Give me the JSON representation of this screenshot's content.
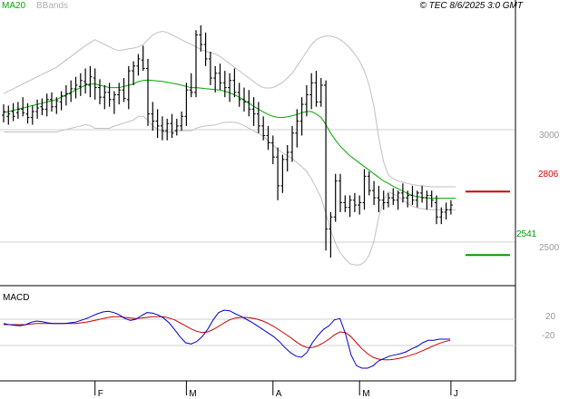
{
  "header": {
    "ma_label": "MA20",
    "bands_label": "BBands",
    "copyright": "© TEC 8/6/2025 3:0 GMT"
  },
  "levels": {
    "resistance_label": "2806",
    "resistance_value": 2806,
    "support_label": "2541",
    "support_value": 2541,
    "resistance_color": "#cc0000",
    "support_color": "#009900"
  },
  "colors": {
    "ma": "#00aa00",
    "bands": "#c0c0c0",
    "bars": "#000000",
    "macd": "#0000cc",
    "signal": "#cc0000"
  },
  "chart_data": [
    {
      "type": "ohlc",
      "name": "price",
      "y_ticks": [
        "3000",
        "2500"
      ],
      "y_tick_values": [
        3000,
        2500
      ],
      "ylim": [
        2470,
        3530
      ],
      "x_ticks": [
        "F",
        "M",
        "A",
        "M",
        "J"
      ],
      "x_tick_index": [
        19,
        38,
        56,
        74,
        93
      ],
      "legend": [
        "MA20",
        "BBands"
      ],
      "lines": [
        "MA20",
        "BBands"
      ],
      "ohlc": [
        [
          3125,
          3170,
          3095,
          3140
        ],
        [
          3120,
          3165,
          3085,
          3130
        ],
        [
          3140,
          3175,
          3100,
          3120
        ],
        [
          3135,
          3180,
          3110,
          3150
        ],
        [
          3150,
          3200,
          3120,
          3135
        ],
        [
          3130,
          3175,
          3090,
          3115
        ],
        [
          3115,
          3165,
          3085,
          3140
        ],
        [
          3140,
          3190,
          3110,
          3155
        ],
        [
          3160,
          3195,
          3125,
          3150
        ],
        [
          3150,
          3215,
          3120,
          3190
        ],
        [
          3190,
          3220,
          3140,
          3160
        ],
        [
          3160,
          3200,
          3130,
          3185
        ],
        [
          3180,
          3225,
          3145,
          3205
        ],
        [
          3205,
          3250,
          3165,
          3215
        ],
        [
          3215,
          3270,
          3180,
          3235
        ],
        [
          3235,
          3285,
          3195,
          3250
        ],
        [
          3245,
          3300,
          3205,
          3270
        ],
        [
          3265,
          3320,
          3215,
          3255
        ],
        [
          3250,
          3330,
          3200,
          3285
        ],
        [
          3280,
          3320,
          3190,
          3240
        ],
        [
          3240,
          3275,
          3170,
          3200
        ],
        [
          3200,
          3250,
          3150,
          3220
        ],
        [
          3220,
          3260,
          3160,
          3190
        ],
        [
          3190,
          3225,
          3130,
          3210
        ],
        [
          3210,
          3260,
          3170,
          3230
        ],
        [
          3230,
          3280,
          3180,
          3195
        ],
        [
          3190,
          3330,
          3150,
          3310
        ],
        [
          3310,
          3350,
          3250,
          3330
        ],
        [
          3330,
          3380,
          3290,
          3360
        ],
        [
          3355,
          3415,
          3310,
          3320
        ],
        [
          3320,
          3360,
          3080,
          3130
        ],
        [
          3130,
          3180,
          3060,
          3100
        ],
        [
          3100,
          3150,
          3030,
          3080
        ],
        [
          3080,
          3120,
          3020,
          3060
        ],
        [
          3060,
          3110,
          3020,
          3090
        ],
        [
          3090,
          3130,
          3030,
          3050
        ],
        [
          3060,
          3110,
          3040,
          3080
        ],
        [
          3080,
          3140,
          3060,
          3120
        ],
        [
          3120,
          3260,
          3080,
          3230
        ],
        [
          3230,
          3300,
          3200,
          3220
        ],
        [
          3220,
          3480,
          3200,
          3460
        ],
        [
          3460,
          3500,
          3390,
          3420
        ],
        [
          3420,
          3470,
          3330,
          3360
        ],
        [
          3360,
          3390,
          3250,
          3280
        ],
        [
          3280,
          3330,
          3220,
          3300
        ],
        [
          3300,
          3340,
          3230,
          3260
        ],
        [
          3260,
          3310,
          3200,
          3240
        ],
        [
          3240,
          3300,
          3180,
          3270
        ],
        [
          3270,
          3320,
          3200,
          3220
        ],
        [
          3220,
          3260,
          3160,
          3190
        ],
        [
          3190,
          3240,
          3140,
          3180
        ],
        [
          3180,
          3230,
          3120,
          3150
        ],
        [
          3150,
          3200,
          3080,
          3130
        ],
        [
          3130,
          3180,
          3050,
          3080
        ],
        [
          3080,
          3120,
          3020,
          3040
        ],
        [
          3040,
          3080,
          2980,
          3010
        ],
        [
          3010,
          3040,
          2920,
          2950
        ],
        [
          2950,
          2990,
          2770,
          2830
        ],
        [
          2830,
          2960,
          2800,
          2940
        ],
        [
          2940,
          3000,
          2890,
          2970
        ],
        [
          2970,
          3080,
          2930,
          3050
        ],
        [
          3050,
          3150,
          2990,
          3100
        ],
        [
          3100,
          3200,
          3040,
          3170
        ],
        [
          3170,
          3250,
          3120,
          3210
        ],
        [
          3210,
          3300,
          3150,
          3260
        ],
        [
          3260,
          3310,
          3160,
          3180
        ],
        [
          3180,
          3280,
          3160,
          3250
        ],
        [
          3250,
          3270,
          2560,
          2650
        ],
        [
          2650,
          2720,
          2530,
          2700
        ],
        [
          2700,
          2880,
          2680,
          2850
        ],
        [
          2850,
          2880,
          2720,
          2760
        ],
        [
          2760,
          2790,
          2720,
          2740
        ],
        [
          2740,
          2790,
          2700,
          2770
        ],
        [
          2770,
          2800,
          2720,
          2750
        ],
        [
          2750,
          2790,
          2710,
          2760
        ],
        [
          2760,
          2900,
          2730,
          2870
        ],
        [
          2870,
          2890,
          2790,
          2810
        ],
        [
          2810,
          2850,
          2750,
          2780
        ],
        [
          2780,
          2830,
          2720,
          2770
        ],
        [
          2770,
          2810,
          2730,
          2760
        ],
        [
          2760,
          2800,
          2740,
          2780
        ],
        [
          2780,
          2820,
          2750,
          2770
        ],
        [
          2770,
          2810,
          2730,
          2800
        ],
        [
          2800,
          2840,
          2760,
          2780
        ],
        [
          2780,
          2810,
          2740,
          2790
        ],
        [
          2790,
          2830,
          2750,
          2770
        ],
        [
          2770,
          2810,
          2740,
          2800
        ],
        [
          2800,
          2830,
          2760,
          2780
        ],
        [
          2780,
          2810,
          2730,
          2790
        ],
        [
          2790,
          2810,
          2740,
          2770
        ],
        [
          2760,
          2790,
          2670,
          2700
        ],
        [
          2700,
          2740,
          2670,
          2720
        ],
        [
          2720,
          2760,
          2690,
          2730
        ],
        [
          2730,
          2770,
          2710,
          2750
        ]
      ],
      "ma20": [
        3135,
        3140,
        3145,
        3150,
        3155,
        3160,
        3165,
        3170,
        3175,
        3180,
        3185,
        3190,
        3200,
        3210,
        3220,
        3230,
        3240,
        3250,
        3255,
        3255,
        3250,
        3245,
        3240,
        3240,
        3240,
        3245,
        3250,
        3255,
        3265,
        3270,
        3272,
        3270,
        3268,
        3266,
        3262,
        3258,
        3255,
        3250,
        3245,
        3240,
        3240,
        3238,
        3236,
        3234,
        3232,
        3230,
        3225,
        3218,
        3210,
        3200,
        3188,
        3175,
        3162,
        3150,
        3138,
        3128,
        3120,
        3116,
        3115,
        3118,
        3122,
        3128,
        3135,
        3140,
        3140,
        3130,
        3115,
        3085,
        3050,
        3020,
        2995,
        2975,
        2955,
        2940,
        2925,
        2910,
        2895,
        2880,
        2865,
        2850,
        2840,
        2828,
        2818,
        2808,
        2798,
        2790,
        2785,
        2782,
        2780,
        2778,
        2778,
        2778,
        2778,
        2778,
        2778
      ],
      "bb_upper": [
        3215,
        3225,
        3235,
        3245,
        3255,
        3265,
        3275,
        3285,
        3295,
        3305,
        3315,
        3325,
        3340,
        3355,
        3370,
        3385,
        3400,
        3415,
        3428,
        3440,
        3430,
        3420,
        3410,
        3400,
        3395,
        3398,
        3402,
        3405,
        3410,
        3420,
        3440,
        3460,
        3470,
        3475,
        3470,
        3460,
        3450,
        3440,
        3430,
        3420,
        3410,
        3400,
        3392,
        3386,
        3380,
        3370,
        3355,
        3340,
        3325,
        3310,
        3295,
        3280,
        3265,
        3250,
        3240,
        3238,
        3240,
        3250,
        3262,
        3280,
        3300,
        3330,
        3360,
        3390,
        3420,
        3440,
        3450,
        3455,
        3455,
        3450,
        3440,
        3425,
        3405,
        3380,
        3350,
        3310,
        3250,
        3160,
        3030,
        2930,
        2875,
        2860,
        2850,
        2845,
        2840,
        2835,
        2832,
        2830,
        2828,
        2826,
        2826,
        2826,
        2826,
        2826,
        2826
      ],
      "bb_lower": [
        3055,
        3055,
        3055,
        3055,
        3055,
        3055,
        3055,
        3055,
        3055,
        3055,
        3055,
        3055,
        3060,
        3065,
        3070,
        3075,
        3080,
        3085,
        3082,
        3070,
        3070,
        3070,
        3070,
        3080,
        3085,
        3092,
        3098,
        3105,
        3120,
        3120,
        3104,
        3080,
        3066,
        3057,
        3054,
        3056,
        3060,
        3060,
        3060,
        3060,
        3070,
        3076,
        3080,
        3082,
        3084,
        3090,
        3095,
        3096,
        3095,
        3090,
        3081,
        3070,
        3059,
        3050,
        3036,
        3018,
        3000,
        2982,
        2968,
        2956,
        2944,
        2926,
        2910,
        2890,
        2860,
        2820,
        2780,
        2715,
        2645,
        2590,
        2550,
        2525,
        2505,
        2500,
        2500,
        2510,
        2540,
        2600,
        2700,
        2770,
        2805,
        2796,
        2786,
        2771,
        2756,
        2745,
        2738,
        2734,
        2732,
        2730,
        2730,
        2730,
        2730,
        2730,
        2730
      ]
    },
    {
      "type": "line",
      "name": "MACD",
      "title": "MACD",
      "y_ticks": [
        "20",
        "-20"
      ],
      "y_tick_values": [
        20,
        -20
      ],
      "ylim": [
        -80,
        70
      ],
      "macd": [
        12,
        10,
        9,
        8,
        10,
        14,
        16,
        15,
        13,
        12,
        12,
        12,
        13,
        14,
        17,
        20,
        24,
        28,
        31,
        32,
        30,
        26,
        20,
        17,
        19,
        25,
        30,
        29,
        26,
        21,
        13,
        2,
        -10,
        -20,
        -22,
        -18,
        -10,
        2,
        18,
        30,
        34,
        33,
        28,
        24,
        19,
        14,
        8,
        2,
        -4,
        -10,
        -18,
        -28,
        -36,
        -42,
        -44,
        -36,
        -20,
        -8,
        2,
        8,
        18,
        20,
        -5,
        -40,
        -58,
        -62,
        -62,
        -58,
        -50,
        -46,
        -42,
        -40,
        -38,
        -35,
        -30,
        -26,
        -20,
        -16,
        -16,
        -14,
        -14,
        -14
      ],
      "signal": [
        10,
        10,
        10,
        10,
        10,
        11,
        12,
        12,
        12,
        12,
        12,
        12,
        12,
        12,
        13,
        14,
        16,
        18,
        20,
        22,
        23,
        23,
        22,
        21,
        20,
        21,
        22,
        23,
        23,
        23,
        21,
        18,
        13,
        8,
        3,
        -1,
        -3,
        -2,
        2,
        7,
        13,
        18,
        21,
        22,
        22,
        21,
        19,
        16,
        12,
        7,
        1,
        -5,
        -11,
        -18,
        -24,
        -28,
        -28,
        -25,
        -20,
        -14,
        -7,
        -2,
        -3,
        -10,
        -20,
        -30,
        -38,
        -44,
        -47,
        -48,
        -48,
        -47,
        -45,
        -43,
        -40,
        -37,
        -33,
        -29,
        -25,
        -21,
        -18,
        -16
      ]
    }
  ]
}
